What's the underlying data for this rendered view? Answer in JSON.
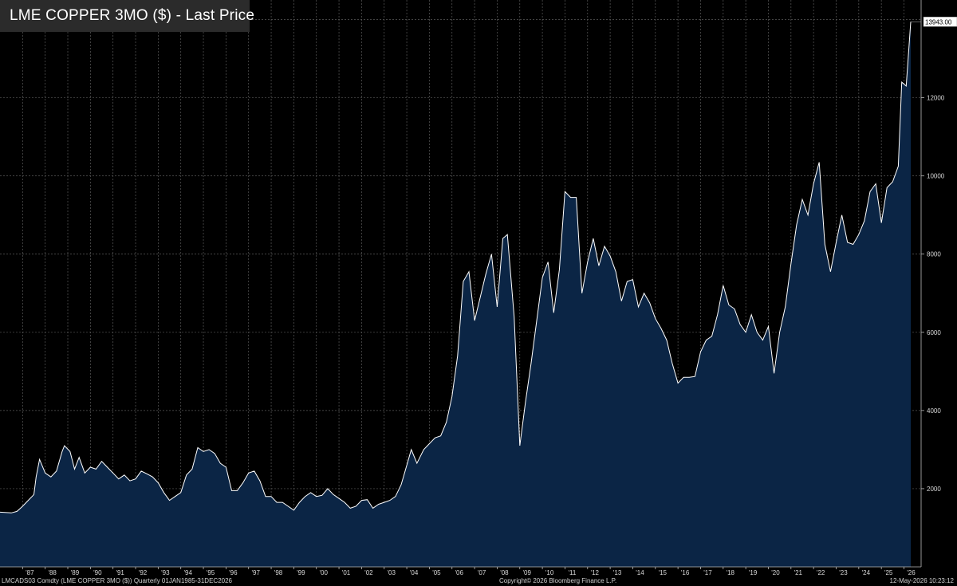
{
  "title_label": "LME COPPER 3MO ($) - Last Price",
  "footer": {
    "left": "LMCADS03 Comdty (LME COPPER   3MO ($)) Quarterly 01JAN1985-31DEC2026",
    "center": "Copyright© 2026 Bloomberg Finance L.P.",
    "right": "12-May-2026 10:23:12"
  },
  "colors": {
    "background": "#000000",
    "area_fill": "#0b2545",
    "line": "#ffffff",
    "grid": "#5a5a5a",
    "title_bg": "#2b2b2b"
  },
  "chart_data": {
    "type": "area",
    "title": "LME COPPER 3MO ($) - Last Price",
    "xlabel": "",
    "ylabel": "",
    "x_ticks": [
      "'87",
      "'88",
      "'89",
      "'90",
      "'91",
      "'92",
      "'93",
      "'94",
      "'95",
      "'96",
      "'97",
      "'98",
      "'99",
      "'00",
      "'01",
      "'02",
      "'03",
      "'04",
      "'05",
      "'06",
      "'07",
      "'08",
      "'09",
      "'10",
      "'11",
      "'12",
      "'13",
      "'14",
      "'15",
      "'16",
      "'17",
      "'18",
      "'19",
      "'20",
      "'21",
      "'22",
      "'23",
      "'24",
      "'25",
      "'26"
    ],
    "y_ticks": [
      2000,
      4000,
      6000,
      8000,
      10000,
      12000
    ],
    "ylim": [
      0,
      14500
    ],
    "xlim": [
      1986.0,
      2026.3
    ],
    "last_value_label": "13943.00",
    "grid": true,
    "series": [
      {
        "points": [
          [
            1986.0,
            1400
          ],
          [
            1986.5,
            1380
          ],
          [
            1986.75,
            1420
          ],
          [
            1987.0,
            1550
          ],
          [
            1987.25,
            1700
          ],
          [
            1987.5,
            1850
          ],
          [
            1987.6,
            2300
          ],
          [
            1987.75,
            2750
          ],
          [
            1988.0,
            2400
          ],
          [
            1988.25,
            2300
          ],
          [
            1988.5,
            2450
          ],
          [
            1988.75,
            2950
          ],
          [
            1988.85,
            3100
          ],
          [
            1989.1,
            2950
          ],
          [
            1989.3,
            2500
          ],
          [
            1989.5,
            2800
          ],
          [
            1989.75,
            2400
          ],
          [
            1990.0,
            2550
          ],
          [
            1990.25,
            2500
          ],
          [
            1990.5,
            2700
          ],
          [
            1990.75,
            2550
          ],
          [
            1991.0,
            2400
          ],
          [
            1991.25,
            2250
          ],
          [
            1991.5,
            2350
          ],
          [
            1991.75,
            2200
          ],
          [
            1992.0,
            2250
          ],
          [
            1992.25,
            2450
          ],
          [
            1992.5,
            2380
          ],
          [
            1992.75,
            2300
          ],
          [
            1993.0,
            2150
          ],
          [
            1993.25,
            1900
          ],
          [
            1993.5,
            1700
          ],
          [
            1993.75,
            1800
          ],
          [
            1994.0,
            1900
          ],
          [
            1994.25,
            2350
          ],
          [
            1994.5,
            2500
          ],
          [
            1994.75,
            3050
          ],
          [
            1995.0,
            2950
          ],
          [
            1995.25,
            3000
          ],
          [
            1995.5,
            2900
          ],
          [
            1995.75,
            2650
          ],
          [
            1996.0,
            2550
          ],
          [
            1996.25,
            1950
          ],
          [
            1996.5,
            1950
          ],
          [
            1996.75,
            2150
          ],
          [
            1997.0,
            2400
          ],
          [
            1997.25,
            2450
          ],
          [
            1997.5,
            2200
          ],
          [
            1997.75,
            1800
          ],
          [
            1998.0,
            1800
          ],
          [
            1998.25,
            1650
          ],
          [
            1998.5,
            1650
          ],
          [
            1998.75,
            1550
          ],
          [
            1999.0,
            1450
          ],
          [
            1999.25,
            1650
          ],
          [
            1999.5,
            1800
          ],
          [
            1999.75,
            1900
          ],
          [
            2000.0,
            1800
          ],
          [
            2000.25,
            1830
          ],
          [
            2000.5,
            2000
          ],
          [
            2000.75,
            1850
          ],
          [
            2001.0,
            1750
          ],
          [
            2001.25,
            1650
          ],
          [
            2001.5,
            1500
          ],
          [
            2001.75,
            1550
          ],
          [
            2002.0,
            1700
          ],
          [
            2002.25,
            1720
          ],
          [
            2002.5,
            1500
          ],
          [
            2002.75,
            1600
          ],
          [
            2003.0,
            1650
          ],
          [
            2003.25,
            1700
          ],
          [
            2003.5,
            1800
          ],
          [
            2003.75,
            2100
          ],
          [
            2004.0,
            2600
          ],
          [
            2004.2,
            3000
          ],
          [
            2004.45,
            2650
          ],
          [
            2004.75,
            3000
          ],
          [
            2005.0,
            3150
          ],
          [
            2005.25,
            3300
          ],
          [
            2005.5,
            3350
          ],
          [
            2005.75,
            3700
          ],
          [
            2006.0,
            4350
          ],
          [
            2006.25,
            5400
          ],
          [
            2006.5,
            7300
          ],
          [
            2006.75,
            7550
          ],
          [
            2007.0,
            6300
          ],
          [
            2007.25,
            6900
          ],
          [
            2007.5,
            7500
          ],
          [
            2007.75,
            8000
          ],
          [
            2008.0,
            6650
          ],
          [
            2008.25,
            8400
          ],
          [
            2008.45,
            8500
          ],
          [
            2008.75,
            6400
          ],
          [
            2009.0,
            3100
          ],
          [
            2009.25,
            4200
          ],
          [
            2009.5,
            5200
          ],
          [
            2009.75,
            6300
          ],
          [
            2010.0,
            7400
          ],
          [
            2010.25,
            7800
          ],
          [
            2010.5,
            6500
          ],
          [
            2010.75,
            7600
          ],
          [
            2011.0,
            9600
          ],
          [
            2011.25,
            9450
          ],
          [
            2011.5,
            9450
          ],
          [
            2011.75,
            7000
          ],
          [
            2012.0,
            7800
          ],
          [
            2012.25,
            8400
          ],
          [
            2012.5,
            7700
          ],
          [
            2012.75,
            8200
          ],
          [
            2013.0,
            7950
          ],
          [
            2013.25,
            7550
          ],
          [
            2013.5,
            6800
          ],
          [
            2013.75,
            7300
          ],
          [
            2014.0,
            7350
          ],
          [
            2014.25,
            6650
          ],
          [
            2014.5,
            7000
          ],
          [
            2014.75,
            6750
          ],
          [
            2015.0,
            6350
          ],
          [
            2015.25,
            6100
          ],
          [
            2015.5,
            5800
          ],
          [
            2015.75,
            5200
          ],
          [
            2016.0,
            4700
          ],
          [
            2016.25,
            4850
          ],
          [
            2016.5,
            4850
          ],
          [
            2016.75,
            4870
          ],
          [
            2017.0,
            5500
          ],
          [
            2017.25,
            5800
          ],
          [
            2017.5,
            5900
          ],
          [
            2017.75,
            6450
          ],
          [
            2018.0,
            7200
          ],
          [
            2018.25,
            6700
          ],
          [
            2018.5,
            6600
          ],
          [
            2018.75,
            6200
          ],
          [
            2019.0,
            6000
          ],
          [
            2019.25,
            6450
          ],
          [
            2019.5,
            6000
          ],
          [
            2019.75,
            5800
          ],
          [
            2020.0,
            6150
          ],
          [
            2020.25,
            4950
          ],
          [
            2020.5,
            6000
          ],
          [
            2020.75,
            6650
          ],
          [
            2021.0,
            7750
          ],
          [
            2021.25,
            8750
          ],
          [
            2021.5,
            9400
          ],
          [
            2021.75,
            9000
          ],
          [
            2022.0,
            9800
          ],
          [
            2022.25,
            10350
          ],
          [
            2022.5,
            8250
          ],
          [
            2022.75,
            7550
          ],
          [
            2023.0,
            8300
          ],
          [
            2023.25,
            9000
          ],
          [
            2023.5,
            8300
          ],
          [
            2023.75,
            8250
          ],
          [
            2024.0,
            8500
          ],
          [
            2024.25,
            8850
          ],
          [
            2024.5,
            9600
          ],
          [
            2024.75,
            9800
          ],
          [
            2025.0,
            8800
          ],
          [
            2025.25,
            9700
          ],
          [
            2025.5,
            9850
          ],
          [
            2025.75,
            10250
          ],
          [
            2025.9,
            12400
          ],
          [
            2026.1,
            12300
          ],
          [
            2026.3,
            13943
          ]
        ]
      }
    ]
  }
}
